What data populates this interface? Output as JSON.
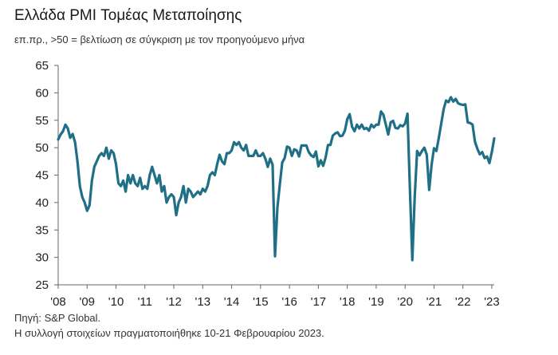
{
  "header": {
    "title": "Ελλάδα PMI Τομέας Μεταποίησης",
    "subtitle": "επ.πρ., >50 = βελτίωση σε σύγκριση με τον προηγούμενο μήνα"
  },
  "footer": {
    "source": "Πηγή: S&P Global.",
    "note": "Η συλλογή στοιχείων πραγματοποιήθηκε 10-21 Φεβρουαρίου 2023."
  },
  "chart_data": {
    "type": "line",
    "title": "Ελλάδα PMI Τομέας Μεταποίησης",
    "subtitle": "επ.πρ., >50 = βελτίωση σε σύγκριση με τον προηγούμενο μήνα",
    "xlabel": "",
    "ylabel": "",
    "ylim": [
      25,
      65
    ],
    "yticks": [
      25,
      30,
      35,
      40,
      45,
      50,
      55,
      60,
      65
    ],
    "x_range": [
      "2008-01",
      "2023-02"
    ],
    "xtick_labels": [
      "'08",
      "'09",
      "'10",
      "'11",
      "'12",
      "'13",
      "'14",
      "'15",
      "'16",
      "'17",
      "'18",
      "'19",
      "'20",
      "'21",
      "'22",
      "'23"
    ],
    "grid": false,
    "line_color": "#1f6f86",
    "series": [
      {
        "points": [
          [
            "2008-01",
            51.5
          ],
          [
            "2008-02",
            52.4
          ],
          [
            "2008-03",
            53.0
          ],
          [
            "2008-04",
            54.2
          ],
          [
            "2008-05",
            53.5
          ],
          [
            "2008-06",
            51.8
          ],
          [
            "2008-07",
            52.5
          ],
          [
            "2008-08",
            51.0
          ],
          [
            "2008-09",
            47.5
          ],
          [
            "2008-10",
            43.0
          ],
          [
            "2008-11",
            41.0
          ],
          [
            "2008-12",
            40.0
          ],
          [
            "2009-01",
            38.5
          ],
          [
            "2009-02",
            39.5
          ],
          [
            "2009-03",
            44.0
          ],
          [
            "2009-04",
            46.5
          ],
          [
            "2009-05",
            47.5
          ],
          [
            "2009-06",
            48.5
          ],
          [
            "2009-07",
            49.0
          ],
          [
            "2009-08",
            48.5
          ],
          [
            "2009-09",
            50.0
          ],
          [
            "2009-10",
            48.0
          ],
          [
            "2009-11",
            49.5
          ],
          [
            "2009-12",
            49.0
          ],
          [
            "2010-01",
            47.0
          ],
          [
            "2010-02",
            43.5
          ],
          [
            "2010-03",
            43.0
          ],
          [
            "2010-04",
            44.0
          ],
          [
            "2010-05",
            42.0
          ],
          [
            "2010-06",
            45.0
          ],
          [
            "2010-07",
            43.5
          ],
          [
            "2010-08",
            45.0
          ],
          [
            "2010-09",
            43.5
          ],
          [
            "2010-10",
            43.0
          ],
          [
            "2010-11",
            44.5
          ],
          [
            "2010-12",
            42.5
          ],
          [
            "2011-01",
            43.0
          ],
          [
            "2011-02",
            42.5
          ],
          [
            "2011-03",
            45.0
          ],
          [
            "2011-04",
            46.5
          ],
          [
            "2011-05",
            45.0
          ],
          [
            "2011-06",
            43.5
          ],
          [
            "2011-07",
            45.0
          ],
          [
            "2011-08",
            42.0
          ],
          [
            "2011-09",
            43.0
          ],
          [
            "2011-10",
            40.0
          ],
          [
            "2011-11",
            41.0
          ],
          [
            "2011-12",
            41.5
          ],
          [
            "2012-01",
            41.0
          ],
          [
            "2012-02",
            37.7
          ],
          [
            "2012-03",
            40.0
          ],
          [
            "2012-04",
            41.0
          ],
          [
            "2012-05",
            43.0
          ],
          [
            "2012-06",
            40.0
          ],
          [
            "2012-07",
            42.5
          ],
          [
            "2012-08",
            42.0
          ],
          [
            "2012-09",
            41.0
          ],
          [
            "2012-10",
            41.5
          ],
          [
            "2012-11",
            42.0
          ],
          [
            "2012-12",
            41.5
          ],
          [
            "2013-01",
            42.5
          ],
          [
            "2013-02",
            42.0
          ],
          [
            "2013-03",
            43.0
          ],
          [
            "2013-04",
            45.0
          ],
          [
            "2013-05",
            45.5
          ],
          [
            "2013-06",
            45.0
          ],
          [
            "2013-07",
            47.0
          ],
          [
            "2013-08",
            48.7
          ],
          [
            "2013-09",
            47.5
          ],
          [
            "2013-10",
            47.0
          ],
          [
            "2013-11",
            49.0
          ],
          [
            "2013-12",
            49.0
          ],
          [
            "2014-01",
            49.5
          ],
          [
            "2014-02",
            51.0
          ],
          [
            "2014-03",
            50.5
          ],
          [
            "2014-04",
            51.0
          ],
          [
            "2014-05",
            50.0
          ],
          [
            "2014-06",
            49.5
          ],
          [
            "2014-07",
            50.5
          ],
          [
            "2014-08",
            48.5
          ],
          [
            "2014-09",
            48.5
          ],
          [
            "2014-10",
            48.5
          ],
          [
            "2014-11",
            49.5
          ],
          [
            "2014-12",
            48.5
          ],
          [
            "2015-01",
            48.5
          ],
          [
            "2015-02",
            49.0
          ],
          [
            "2015-03",
            48.0
          ],
          [
            "2015-04",
            46.5
          ],
          [
            "2015-05",
            48.0
          ],
          [
            "2015-06",
            46.9
          ],
          [
            "2015-07",
            30.2
          ],
          [
            "2015-08",
            39.1
          ],
          [
            "2015-09",
            43.3
          ],
          [
            "2015-10",
            47.3
          ],
          [
            "2015-11",
            48.1
          ],
          [
            "2015-12",
            50.2
          ],
          [
            "2016-01",
            50.0
          ],
          [
            "2016-02",
            48.5
          ],
          [
            "2016-03",
            49.7
          ],
          [
            "2016-04",
            49.5
          ],
          [
            "2016-05",
            48.4
          ],
          [
            "2016-06",
            50.4
          ],
          [
            "2016-07",
            50.4
          ],
          [
            "2016-08",
            50.4
          ],
          [
            "2016-09",
            49.2
          ],
          [
            "2016-10",
            48.6
          ],
          [
            "2016-11",
            48.3
          ],
          [
            "2016-12",
            49.3
          ],
          [
            "2017-01",
            46.6
          ],
          [
            "2017-02",
            47.7
          ],
          [
            "2017-03",
            46.7
          ],
          [
            "2017-04",
            48.2
          ],
          [
            "2017-05",
            50.5
          ],
          [
            "2017-06",
            50.5
          ],
          [
            "2017-07",
            52.2
          ],
          [
            "2017-08",
            52.6
          ],
          [
            "2017-09",
            52.8
          ],
          [
            "2017-10",
            52.1
          ],
          [
            "2017-11",
            52.2
          ],
          [
            "2017-12",
            53.1
          ],
          [
            "2018-01",
            55.2
          ],
          [
            "2018-02",
            56.1
          ],
          [
            "2018-03",
            53.8
          ],
          [
            "2018-04",
            53.0
          ],
          [
            "2018-05",
            54.2
          ],
          [
            "2018-06",
            53.5
          ],
          [
            "2018-07",
            54.2
          ],
          [
            "2018-08",
            53.4
          ],
          [
            "2018-09",
            53.6
          ],
          [
            "2018-10",
            53.1
          ],
          [
            "2018-11",
            54.2
          ],
          [
            "2018-12",
            53.7
          ],
          [
            "2019-01",
            54.2
          ],
          [
            "2019-02",
            54.2
          ],
          [
            "2019-03",
            56.6
          ],
          [
            "2019-04",
            56.0
          ],
          [
            "2019-05",
            54.2
          ],
          [
            "2019-06",
            52.4
          ],
          [
            "2019-07",
            54.6
          ],
          [
            "2019-08",
            54.9
          ],
          [
            "2019-09",
            53.6
          ],
          [
            "2019-10",
            53.5
          ],
          [
            "2019-11",
            54.1
          ],
          [
            "2019-12",
            53.9
          ],
          [
            "2020-01",
            54.4
          ],
          [
            "2020-02",
            56.2
          ],
          [
            "2020-03",
            42.5
          ],
          [
            "2020-04",
            29.5
          ],
          [
            "2020-05",
            41.1
          ],
          [
            "2020-06",
            49.4
          ],
          [
            "2020-07",
            48.6
          ],
          [
            "2020-08",
            49.4
          ],
          [
            "2020-09",
            50.0
          ],
          [
            "2020-10",
            48.7
          ],
          [
            "2020-11",
            42.3
          ],
          [
            "2020-12",
            46.9
          ],
          [
            "2021-01",
            49.9
          ],
          [
            "2021-02",
            49.4
          ],
          [
            "2021-03",
            51.8
          ],
          [
            "2021-04",
            54.4
          ],
          [
            "2021-05",
            57.0
          ],
          [
            "2021-06",
            58.6
          ],
          [
            "2021-07",
            58.3
          ],
          [
            "2021-08",
            59.2
          ],
          [
            "2021-09",
            58.4
          ],
          [
            "2021-10",
            58.9
          ],
          [
            "2021-11",
            58.1
          ],
          [
            "2021-12",
            57.9
          ],
          [
            "2022-01",
            57.8
          ],
          [
            "2022-02",
            57.9
          ],
          [
            "2022-03",
            54.6
          ],
          [
            "2022-04",
            54.5
          ],
          [
            "2022-05",
            54.2
          ],
          [
            "2022-06",
            51.1
          ],
          [
            "2022-07",
            49.8
          ],
          [
            "2022-08",
            48.8
          ],
          [
            "2022-09",
            49.2
          ],
          [
            "2022-10",
            48.1
          ],
          [
            "2022-11",
            48.4
          ],
          [
            "2022-12",
            47.2
          ],
          [
            "2023-01",
            49.2
          ],
          [
            "2023-02",
            51.7
          ]
        ]
      }
    ]
  }
}
